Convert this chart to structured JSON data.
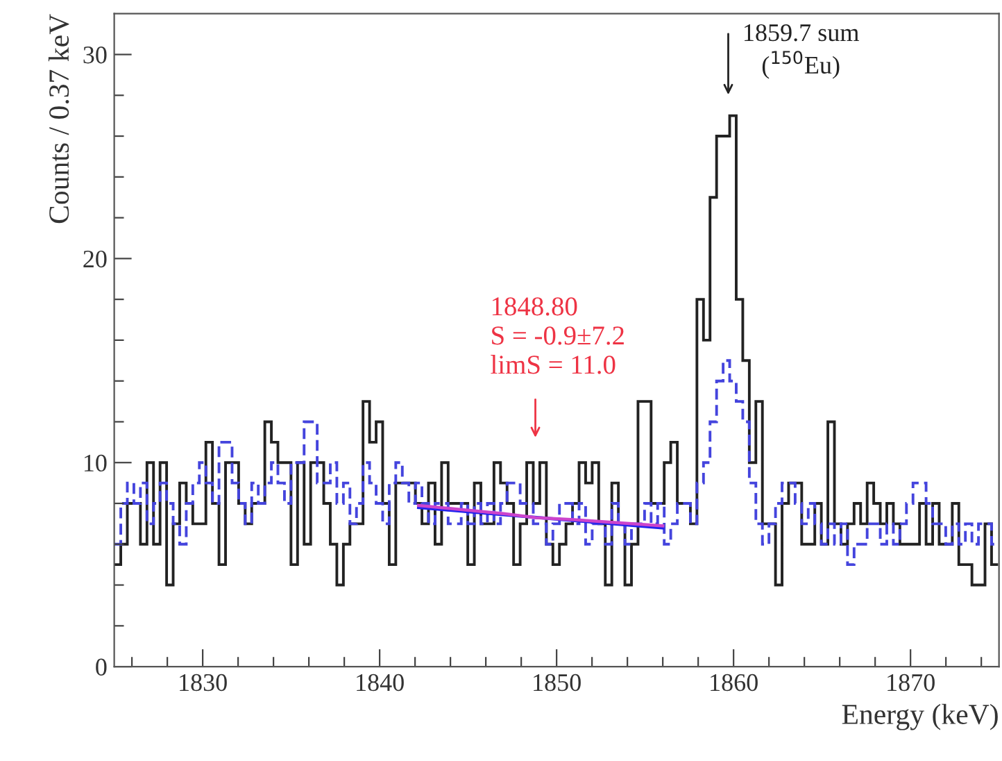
{
  "chart_data": {
    "type": "histogram",
    "xlabel": "Energy (keV)",
    "ylabel": "Counts / 0.37 keV",
    "xlim": [
      1825,
      1875
    ],
    "ylim": [
      0,
      32
    ],
    "xticks": [
      {
        "value": 1826,
        "label": null
      },
      {
        "value": 1828,
        "label": null
      },
      1830,
      {
        "value": 1832,
        "label": null
      },
      {
        "value": 1834,
        "label": null
      },
      {
        "value": 1836,
        "label": null
      },
      {
        "value": 1838,
        "label": null
      },
      1840,
      {
        "value": 1842,
        "label": null
      },
      {
        "value": 1844,
        "label": null
      },
      {
        "value": 1846,
        "label": null
      },
      {
        "value": 1848,
        "label": null
      },
      1850,
      {
        "value": 1852,
        "label": null
      },
      {
        "value": 1854,
        "label": null
      },
      {
        "value": 1856,
        "label": null
      },
      {
        "value": 1858,
        "label": null
      },
      1860,
      {
        "value": 1862,
        "label": null
      },
      {
        "value": 1864,
        "label": null
      },
      {
        "value": 1866,
        "label": null
      },
      {
        "value": 1868,
        "label": null
      },
      1870,
      {
        "value": 1872,
        "label": null
      },
      {
        "value": 1874,
        "label": null
      }
    ],
    "yticks": [
      0,
      {
        "value": 2,
        "label": null
      },
      {
        "value": 4,
        "label": null
      },
      {
        "value": 6,
        "label": null
      },
      {
        "value": 8,
        "label": null
      },
      10,
      {
        "value": 12,
        "label": null
      },
      {
        "value": 14,
        "label": null
      },
      {
        "value": 16,
        "label": null
      },
      {
        "value": 18,
        "label": null
      },
      20,
      {
        "value": 22,
        "label": null
      },
      {
        "value": 24,
        "label": null
      },
      {
        "value": 26,
        "label": null
      },
      {
        "value": 28,
        "label": null
      },
      30
    ],
    "grid": false,
    "legend": false,
    "bins": [
      1825.0,
      1825.37,
      1825.74,
      1826.11,
      1826.48,
      1826.85,
      1827.22,
      1827.59,
      1827.96,
      1828.33,
      1828.7,
      1829.07,
      1829.44,
      1829.81,
      1830.18,
      1830.55,
      1830.92,
      1831.29,
      1831.66,
      1832.03,
      1832.4,
      1832.77,
      1833.14,
      1833.51,
      1833.88,
      1834.25,
      1834.62,
      1834.99,
      1835.36,
      1835.73,
      1836.1,
      1836.47,
      1836.84,
      1837.21,
      1837.58,
      1837.95,
      1838.32,
      1838.69,
      1839.06,
      1839.43,
      1839.8,
      1840.17,
      1840.54,
      1840.91,
      1841.28,
      1841.65,
      1842.02,
      1842.39,
      1842.76,
      1843.13,
      1843.5,
      1843.87,
      1844.24,
      1844.61,
      1844.98,
      1845.35,
      1845.72,
      1846.09,
      1846.46,
      1846.83,
      1847.2,
      1847.57,
      1847.94,
      1848.31,
      1848.68,
      1849.05,
      1849.42,
      1849.79,
      1850.16,
      1850.53,
      1850.9,
      1851.27,
      1851.64,
      1852.01,
      1852.38,
      1852.75,
      1853.12,
      1853.49,
      1853.86,
      1854.23,
      1854.6,
      1854.97,
      1855.34,
      1855.71,
      1856.08,
      1856.45,
      1856.82,
      1857.19,
      1857.56,
      1857.93,
      1858.3,
      1858.67,
      1859.04,
      1859.41,
      1859.78,
      1860.15,
      1860.52,
      1860.89,
      1861.26,
      1861.63,
      1862.0,
      1862.37,
      1862.74,
      1863.11,
      1863.48,
      1863.85,
      1864.22,
      1864.59,
      1864.96,
      1865.33,
      1865.7,
      1866.07,
      1866.44,
      1866.81,
      1867.18,
      1867.55,
      1867.92,
      1868.29,
      1868.66,
      1869.03,
      1869.4,
      1869.77,
      1870.14,
      1870.51,
      1870.88,
      1871.25,
      1871.62,
      1871.99,
      1872.36,
      1872.73,
      1873.1,
      1873.47,
      1873.84,
      1874.21,
      1874.58,
      1874.95
    ],
    "series": [
      {
        "color": "#222222",
        "line_style": "solid",
        "values": [
          5,
          6,
          8,
          8,
          6,
          10,
          6,
          10,
          4,
          7,
          9,
          8,
          7,
          7,
          11,
          8,
          5,
          10,
          10,
          8,
          7,
          8,
          8,
          12,
          11,
          10,
          10,
          5,
          10,
          6,
          10,
          10,
          8,
          6,
          4,
          6,
          7,
          7,
          13,
          11,
          12,
          8,
          5,
          9,
          9,
          9,
          8,
          7,
          9,
          6,
          10,
          8,
          8,
          8,
          5,
          9,
          7,
          7,
          10,
          9,
          8,
          5,
          7,
          10,
          8,
          10,
          6,
          5,
          6,
          7,
          8,
          10,
          9,
          10,
          7,
          4,
          9,
          7,
          4,
          6,
          13,
          13,
          8,
          8,
          10,
          11,
          8,
          8,
          7,
          18,
          16,
          23,
          26,
          26,
          27,
          18,
          15,
          10,
          13,
          7,
          7,
          4,
          8,
          9,
          9,
          6,
          6,
          8,
          6,
          12,
          7,
          6,
          7,
          8,
          7,
          9,
          8,
          7,
          8,
          7,
          6,
          6,
          6,
          8,
          6,
          8,
          6,
          6,
          8,
          5,
          5,
          4,
          4,
          7,
          5
        ]
      },
      {
        "color": "#4444dd",
        "line_style": "dashed",
        "values": [
          6,
          8,
          9,
          8,
          9,
          7,
          8,
          9,
          8,
          7,
          6,
          8,
          9,
          10,
          9,
          8,
          11,
          11,
          9,
          8,
          7,
          9,
          8,
          9,
          10,
          9,
          8,
          10,
          10,
          12,
          12,
          9,
          9,
          10,
          8,
          9,
          7,
          8,
          10,
          9,
          8,
          7,
          9,
          10,
          9,
          8,
          9,
          8,
          7,
          8,
          8,
          7,
          7,
          8,
          7,
          8,
          7,
          8,
          7,
          8,
          9,
          9,
          8,
          8,
          7,
          7,
          6,
          7,
          8,
          8,
          7,
          8,
          6,
          7,
          7,
          6,
          8,
          7,
          6,
          7,
          7,
          8,
          7,
          8,
          6,
          7,
          8,
          8,
          7,
          9,
          10,
          12,
          14,
          15,
          14,
          13,
          12,
          9,
          7,
          6,
          7,
          8,
          9,
          9,
          8,
          7,
          8,
          7,
          6,
          7,
          6,
          7,
          5,
          6,
          6,
          7,
          7,
          6,
          7,
          6,
          7,
          8,
          9,
          9,
          8,
          7,
          7,
          6,
          7,
          6,
          7,
          6,
          7,
          7,
          6
        ]
      },
      {
        "type": "line",
        "color": "#2222ee",
        "line_style": "solid",
        "x": [
          1842.2,
          1849,
          1856
        ],
        "values": [
          7.8,
          7.3,
          6.8
        ]
      },
      {
        "type": "line",
        "color": "#cc44cc",
        "line_style": "solid",
        "x": [
          1842.2,
          1847,
          1848.8,
          1851,
          1856
        ],
        "values": [
          7.9,
          7.5,
          7.3,
          7.2,
          6.9
        ]
      }
    ],
    "annotations": [
      "1859.7 sum\n($^{150}$Eu)",
      "1848.80\nS = -0.9±7.2\nlimS = 11.0"
    ]
  }
}
